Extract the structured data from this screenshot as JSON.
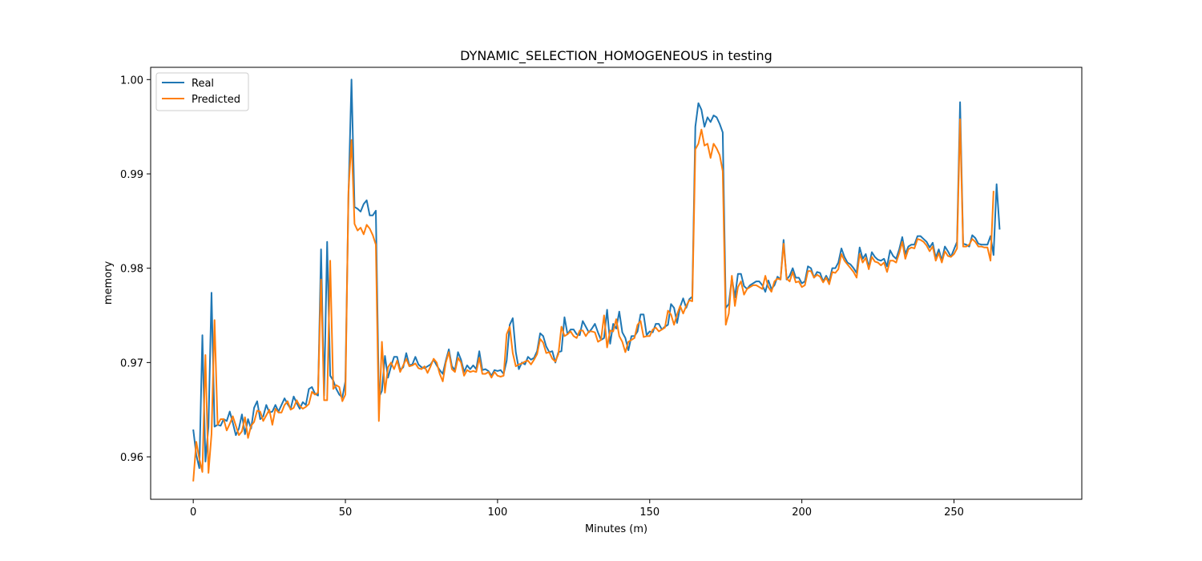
{
  "chart_data": {
    "type": "line",
    "title": "DYNAMIC_SELECTION_HOMOGENEOUS in testing",
    "xlabel": "Minutes (m)",
    "ylabel": "memory",
    "xlim": [
      -14,
      292
    ],
    "ylim": [
      0.9555,
      1.0013
    ],
    "xticks": [
      0,
      50,
      100,
      150,
      200,
      250
    ],
    "yticks": [
      0.96,
      0.97,
      0.98,
      0.99,
      1.0
    ],
    "ytick_labels": [
      "0.96",
      "0.97",
      "0.98",
      "0.99",
      "1.00"
    ],
    "grid": false,
    "legend_position": "top-left",
    "series": [
      {
        "name": "Real",
        "color": "#1f77b4",
        "x_start": 0,
        "values": [
          0.9629,
          0.9602,
          0.9588,
          0.9729,
          0.9595,
          0.9632,
          0.9774,
          0.9632,
          0.9634,
          0.9633,
          0.964,
          0.9638,
          0.9648,
          0.9636,
          0.9623,
          0.963,
          0.9645,
          0.9624,
          0.964,
          0.963,
          0.9652,
          0.9659,
          0.964,
          0.9643,
          0.9655,
          0.9647,
          0.9648,
          0.9655,
          0.9648,
          0.9655,
          0.9662,
          0.9656,
          0.9651,
          0.9664,
          0.9657,
          0.9651,
          0.9658,
          0.9655,
          0.9672,
          0.9674,
          0.9667,
          0.9665,
          0.982,
          0.9665,
          0.9828,
          0.9686,
          0.9681,
          0.9672,
          0.9666,
          0.9663,
          0.968,
          0.9875,
          1.0,
          0.9865,
          0.9863,
          0.986,
          0.9868,
          0.9872,
          0.9856,
          0.9856,
          0.9861,
          0.9663,
          0.967,
          0.9707,
          0.9684,
          0.9696,
          0.9706,
          0.9706,
          0.9692,
          0.9695,
          0.971,
          0.9697,
          0.9698,
          0.9706,
          0.9698,
          0.9695,
          0.9694,
          0.9696,
          0.9698,
          0.9703,
          0.9697,
          0.9692,
          0.9688,
          0.9702,
          0.9714,
          0.9696,
          0.9692,
          0.9711,
          0.9703,
          0.969,
          0.9697,
          0.9693,
          0.9697,
          0.9693,
          0.9712,
          0.9692,
          0.9693,
          0.9691,
          0.9686,
          0.9692,
          0.9691,
          0.9692,
          0.9688,
          0.9702,
          0.974,
          0.9747,
          0.9711,
          0.9693,
          0.97,
          0.9698,
          0.9706,
          0.9703,
          0.9705,
          0.9712,
          0.9731,
          0.9728,
          0.9717,
          0.9711,
          0.9712,
          0.97,
          0.9711,
          0.9712,
          0.9748,
          0.973,
          0.9735,
          0.9735,
          0.973,
          0.9729,
          0.9744,
          0.9738,
          0.9732,
          0.9736,
          0.9741,
          0.9732,
          0.9724,
          0.9726,
          0.9756,
          0.972,
          0.9741,
          0.9736,
          0.9754,
          0.9732,
          0.9726,
          0.9713,
          0.9728,
          0.9728,
          0.9733,
          0.9751,
          0.9751,
          0.9729,
          0.9733,
          0.9732,
          0.9741,
          0.9741,
          0.9735,
          0.9738,
          0.974,
          0.9762,
          0.9758,
          0.9742,
          0.9759,
          0.9768,
          0.9758,
          0.9767,
          0.977,
          0.995,
          0.9975,
          0.9968,
          0.995,
          0.996,
          0.9955,
          0.9962,
          0.996,
          0.9953,
          0.9944,
          0.9758,
          0.9762,
          0.979,
          0.9769,
          0.9794,
          0.9794,
          0.9781,
          0.9778,
          0.9782,
          0.9784,
          0.9786,
          0.9786,
          0.9782,
          0.9775,
          0.9787,
          0.9778,
          0.9782,
          0.9791,
          0.9788,
          0.983,
          0.9788,
          0.9792,
          0.98,
          0.979,
          0.979,
          0.9784,
          0.9786,
          0.9802,
          0.98,
          0.979,
          0.9796,
          0.9795,
          0.9786,
          0.9792,
          0.9786,
          0.98,
          0.98,
          0.9806,
          0.9821,
          0.9812,
          0.9806,
          0.9804,
          0.98,
          0.9795,
          0.9822,
          0.981,
          0.9815,
          0.9801,
          0.9817,
          0.9812,
          0.9809,
          0.9808,
          0.981,
          0.9802,
          0.9819,
          0.9813,
          0.981,
          0.982,
          0.9833,
          0.9815,
          0.9823,
          0.9825,
          0.9825,
          0.9834,
          0.9834,
          0.9831,
          0.9828,
          0.9822,
          0.9827,
          0.9811,
          0.982,
          0.9808,
          0.9823,
          0.9818,
          0.9812,
          0.982,
          0.9828,
          0.9976,
          0.9826,
          0.9825,
          0.9823,
          0.9835,
          0.9832,
          0.9826,
          0.9825,
          0.9825,
          0.9825,
          0.9834,
          0.9814,
          0.9889,
          0.9841
        ]
      },
      {
        "name": "Predicted",
        "color": "#ff7f0e",
        "x_start": 0,
        "values": [
          0.9574,
          0.9616,
          0.9598,
          0.9584,
          0.9708,
          0.9583,
          0.9624,
          0.9745,
          0.9634,
          0.964,
          0.964,
          0.9628,
          0.9635,
          0.9643,
          0.9633,
          0.9623,
          0.9627,
          0.9642,
          0.962,
          0.9633,
          0.9637,
          0.9649,
          0.9648,
          0.9638,
          0.9644,
          0.965,
          0.9634,
          0.9651,
          0.9647,
          0.9647,
          0.9655,
          0.9659,
          0.965,
          0.9652,
          0.966,
          0.9654,
          0.9651,
          0.9653,
          0.9656,
          0.9669,
          0.9666,
          0.9668,
          0.9788,
          0.966,
          0.966,
          0.9808,
          0.9672,
          0.9676,
          0.9674,
          0.9659,
          0.9666,
          0.9881,
          0.9936,
          0.9847,
          0.984,
          0.9843,
          0.9836,
          0.9846,
          0.9842,
          0.9835,
          0.9825,
          0.9638,
          0.9722,
          0.9668,
          0.9695,
          0.97,
          0.9693,
          0.9702,
          0.969,
          0.9697,
          0.9704,
          0.9696,
          0.9697,
          0.9699,
          0.9694,
          0.9693,
          0.9696,
          0.9689,
          0.9696,
          0.9704,
          0.97,
          0.9688,
          0.968,
          0.97,
          0.9711,
          0.9693,
          0.969,
          0.9705,
          0.97,
          0.9686,
          0.9692,
          0.969,
          0.9691,
          0.969,
          0.9705,
          0.9688,
          0.9688,
          0.969,
          0.9684,
          0.969,
          0.9686,
          0.9685,
          0.9686,
          0.973,
          0.9738,
          0.971,
          0.9696,
          0.9698,
          0.9699,
          0.9701,
          0.9702,
          0.9698,
          0.9703,
          0.9709,
          0.9725,
          0.9721,
          0.971,
          0.9711,
          0.9704,
          0.9701,
          0.9709,
          0.9738,
          0.9728,
          0.973,
          0.9733,
          0.9728,
          0.9726,
          0.9734,
          0.9734,
          0.9728,
          0.9733,
          0.9733,
          0.9732,
          0.9722,
          0.9724,
          0.975,
          0.9716,
          0.9734,
          0.9733,
          0.9746,
          0.9728,
          0.9722,
          0.9711,
          0.9722,
          0.9724,
          0.9726,
          0.974,
          0.9744,
          0.9727,
          0.9728,
          0.9728,
          0.9735,
          0.9737,
          0.9733,
          0.9735,
          0.9737,
          0.9755,
          0.9751,
          0.974,
          0.9751,
          0.976,
          0.9752,
          0.976,
          0.9766,
          0.9765,
          0.9926,
          0.9932,
          0.9947,
          0.993,
          0.9932,
          0.9917,
          0.9932,
          0.9927,
          0.992,
          0.9903,
          0.974,
          0.9752,
          0.9792,
          0.976,
          0.978,
          0.9786,
          0.9772,
          0.9778,
          0.978,
          0.9782,
          0.9782,
          0.978,
          0.9778,
          0.9792,
          0.978,
          0.9775,
          0.9786,
          0.9789,
          0.9788,
          0.9826,
          0.9789,
          0.9786,
          0.9796,
          0.9785,
          0.9786,
          0.978,
          0.9782,
          0.9797,
          0.9797,
          0.979,
          0.9793,
          0.9791,
          0.9785,
          0.979,
          0.9783,
          0.9796,
          0.9795,
          0.9799,
          0.9815,
          0.9808,
          0.9804,
          0.98,
          0.9796,
          0.979,
          0.9815,
          0.9806,
          0.9811,
          0.9799,
          0.9812,
          0.9807,
          0.9806,
          0.9803,
          0.9806,
          0.9796,
          0.9808,
          0.9808,
          0.9806,
          0.9816,
          0.9828,
          0.981,
          0.982,
          0.9822,
          0.9821,
          0.9831,
          0.983,
          0.9828,
          0.9824,
          0.9818,
          0.9823,
          0.9808,
          0.9816,
          0.9806,
          0.9818,
          0.9813,
          0.9812,
          0.9815,
          0.9821,
          0.9958,
          0.9823,
          0.9823,
          0.9825,
          0.9831,
          0.9828,
          0.9823,
          0.9823,
          0.9822,
          0.9822,
          0.9808,
          0.9882
        ]
      }
    ]
  }
}
